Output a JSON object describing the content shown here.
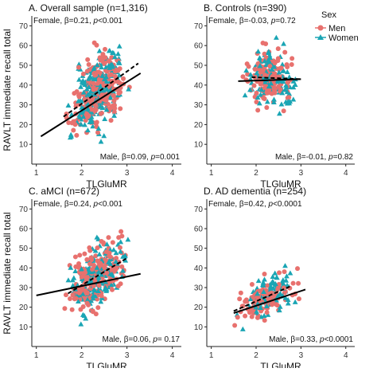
{
  "figure": {
    "y_axis_title": "RAVLT immediate recall total"
  },
  "legend": {
    "title": "Sex",
    "items": [
      {
        "label": "Men",
        "color": "#E8716E",
        "marker": "circle"
      },
      {
        "label": "Women",
        "color": "#1AA5B4",
        "marker": "triangle"
      }
    ]
  },
  "colors": {
    "men": "#E8716E",
    "women": "#1AA5B4",
    "axis": "#222222"
  },
  "chart_data": [
    {
      "type": "scatter",
      "title": "A. Overall sample (n=1,316)",
      "xlabel": "TLGluMR",
      "ylabel": "RAVLT immediate recall total",
      "xlim": [
        0.9,
        4.2
      ],
      "ylim": [
        0,
        75
      ],
      "xticks": [
        1,
        2,
        3,
        4
      ],
      "yticks": [
        10,
        20,
        30,
        40,
        50,
        60,
        70
      ],
      "female_stat": {
        "prefix": "Female, β=0.21, ",
        "p": "p",
        "suffix": "<0.001"
      },
      "male_stat": {
        "prefix": "Male, β=0.09, ",
        "p": "p",
        "suffix": "=0.001"
      },
      "female_line": {
        "x": [
          1.6,
          3.25
        ],
        "y": [
          24,
          51
        ],
        "style": "dashed"
      },
      "male_line": {
        "x": [
          1.1,
          3.3
        ],
        "y": [
          14,
          46
        ],
        "style": "solid"
      },
      "cloud": {
        "xmin": 1.6,
        "xmax": 3.1,
        "ymin": 3,
        "ymax": 70,
        "n": 480,
        "seed": 11
      }
    },
    {
      "type": "scatter",
      "title": "B. Controls (n=390)",
      "xlabel": "TLGluMR",
      "ylabel": "",
      "xlim": [
        0.9,
        4.2
      ],
      "ylim": [
        0,
        75
      ],
      "xticks": [
        1,
        2,
        3,
        4
      ],
      "yticks": [
        10,
        20,
        30,
        40,
        50,
        60,
        70
      ],
      "female_stat": {
        "prefix": "Female, β=-0.03, ",
        "p": "p",
        "suffix": "=0.72"
      },
      "male_stat": {
        "prefix": "Male, β=-0.01, ",
        "p": "p",
        "suffix": "=0.82"
      },
      "female_line": {
        "x": [
          1.9,
          3.0
        ],
        "y": [
          44,
          43
        ],
        "style": "dashed"
      },
      "male_line": {
        "x": [
          1.6,
          3.0
        ],
        "y": [
          42,
          43
        ],
        "style": "solid"
      },
      "cloud": {
        "xmin": 1.6,
        "xmax": 3.0,
        "ymin": 17,
        "ymax": 70,
        "n": 260,
        "seed": 23
      }
    },
    {
      "type": "scatter",
      "title": "C. aMCI (n=672)",
      "xlabel": "TLGluMR",
      "ylabel": "RAVLT immediate recall total",
      "xlim": [
        0.9,
        4.2
      ],
      "ylim": [
        0,
        75
      ],
      "xticks": [
        1,
        2,
        3,
        4
      ],
      "yticks": [
        10,
        20,
        30,
        40,
        50,
        60,
        70
      ],
      "female_stat": {
        "prefix": "Female, β=0.24, ",
        "p": "p",
        "suffix": "<0.001"
      },
      "male_stat": {
        "prefix": "Male, β=0.06, ",
        "p": "p",
        "suffix": "= 0.17"
      },
      "female_line": {
        "x": [
          1.7,
          3.0
        ],
        "y": [
          27,
          45
        ],
        "style": "dashed"
      },
      "male_line": {
        "x": [
          1.0,
          3.3
        ],
        "y": [
          26,
          37
        ],
        "style": "solid"
      },
      "cloud": {
        "xmin": 1.5,
        "xmax": 3.2,
        "ymin": 10,
        "ymax": 70,
        "n": 380,
        "seed": 37
      }
    },
    {
      "type": "scatter",
      "title": "D. AD dementia (n=254)",
      "xlabel": "TLGluMR",
      "ylabel": "",
      "xlim": [
        0.9,
        4.2
      ],
      "ylim": [
        0,
        75
      ],
      "xticks": [
        1,
        2,
        3,
        4
      ],
      "yticks": [
        10,
        20,
        30,
        40,
        50,
        60,
        70
      ],
      "female_stat": {
        "prefix": "Female, β=0.42, ",
        "p": "p",
        "suffix": "<0.0001"
      },
      "male_stat": {
        "prefix": "Male, β=0.33, ",
        "p": "p",
        "suffix": "<0.0001"
      },
      "female_line": {
        "x": [
          1.5,
          2.8
        ],
        "y": [
          18,
          31
        ],
        "style": "dashed"
      },
      "male_line": {
        "x": [
          1.5,
          3.1
        ],
        "y": [
          17,
          29
        ],
        "style": "solid"
      },
      "cloud": {
        "xmin": 1.4,
        "xmax": 3.1,
        "ymin": 8,
        "ymax": 45,
        "n": 220,
        "seed": 53
      }
    }
  ]
}
